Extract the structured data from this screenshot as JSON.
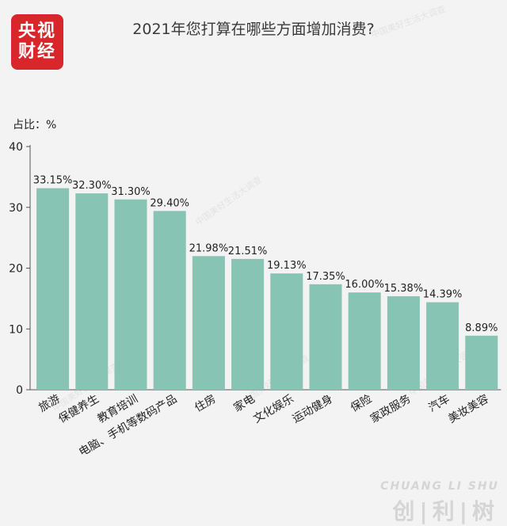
{
  "logo": {
    "line1": "央视",
    "line2": "财经"
  },
  "footer_logo": {
    "en": "CHUANG LI SHU",
    "zh": "创|利|树"
  },
  "chart_data": {
    "type": "bar",
    "title": "2021年您打算在哪些方面增加消费?",
    "ylabel": "占比：%",
    "xlabel": "",
    "ylim": [
      0,
      40
    ],
    "yticks": [
      0,
      10,
      20,
      30,
      40
    ],
    "grid": false,
    "categories": [
      "旅游",
      "保健养生",
      "教育培训",
      "电脑、手机等数码产品",
      "住房",
      "家电",
      "文化娱乐",
      "运动健身",
      "保险",
      "家政服务",
      "汽车",
      "美妆美容"
    ],
    "values": [
      33.15,
      32.3,
      31.3,
      29.4,
      21.98,
      21.51,
      19.13,
      17.35,
      16.0,
      15.38,
      14.39,
      8.89
    ],
    "value_labels": [
      "33.15%",
      "32.30%",
      "31.30%",
      "29.40%",
      "21.98%",
      "21.51%",
      "19.13%",
      "17.35%",
      "16.00%",
      "15.38%",
      "14.39%",
      "8.89%"
    ],
    "bar_color": "#88c4b3",
    "watermark": "中国美好生活大调查"
  }
}
